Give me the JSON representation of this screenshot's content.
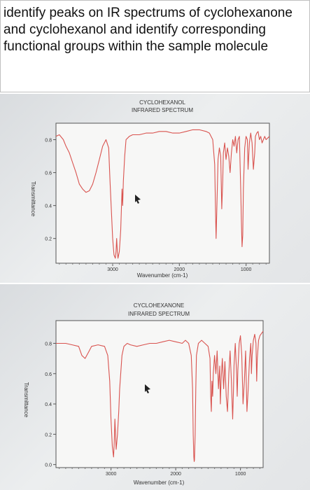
{
  "question": {
    "text": "identify peaks on IR spectrums of cyclohexanone and cyclohexanol and identify corresponding functional groups within the sample molecule"
  },
  "colors": {
    "trace": "#d9534f",
    "frame": "#555555",
    "text": "#333333"
  },
  "chart_data": [
    {
      "type": "line",
      "title": "CYCLOHEXANOL",
      "subtitle": "INFRARED SPECTRUM",
      "xlabel": "Wavenumber (cm-1)",
      "ylabel": "Transmittance",
      "x_ticks": [
        3000,
        2000,
        1000
      ],
      "y_ticks": [
        0.2,
        0.4,
        0.6,
        0.8
      ],
      "xlim": [
        3850,
        650
      ],
      "ylim": [
        0.05,
        0.9
      ],
      "grid": false,
      "series": [
        {
          "x": [
            3850,
            3800,
            3740,
            3700,
            3650,
            3600,
            3550,
            3500,
            3450,
            3400,
            3350,
            3300,
            3250,
            3200,
            3150,
            3100,
            3060,
            3040,
            3000,
            2980,
            2960,
            2950,
            2940,
            2930,
            2920,
            2900,
            2880,
            2860,
            2850,
            2840,
            2820,
            2800,
            2750,
            2700,
            2600,
            2500,
            2400,
            2300,
            2200,
            2100,
            2000,
            1900,
            1800,
            1700,
            1600,
            1550,
            1500,
            1470,
            1455,
            1450,
            1440,
            1420,
            1400,
            1380,
            1365,
            1350,
            1340,
            1320,
            1300,
            1280,
            1260,
            1240,
            1220,
            1200,
            1180,
            1160,
            1140,
            1120,
            1100,
            1080,
            1070,
            1060,
            1050,
            1040,
            1020,
            1000,
            980,
            970,
            950,
            930,
            910,
            890,
            870,
            860,
            840,
            820,
            800,
            780,
            760,
            740,
            720,
            700,
            650
          ],
          "y": [
            0.82,
            0.83,
            0.8,
            0.76,
            0.72,
            0.66,
            0.6,
            0.53,
            0.5,
            0.48,
            0.49,
            0.53,
            0.6,
            0.68,
            0.76,
            0.8,
            0.75,
            0.55,
            0.2,
            0.1,
            0.08,
            0.12,
            0.2,
            0.12,
            0.08,
            0.12,
            0.25,
            0.5,
            0.4,
            0.55,
            0.7,
            0.8,
            0.82,
            0.83,
            0.83,
            0.84,
            0.84,
            0.85,
            0.85,
            0.84,
            0.84,
            0.85,
            0.86,
            0.86,
            0.85,
            0.84,
            0.8,
            0.65,
            0.3,
            0.2,
            0.35,
            0.68,
            0.75,
            0.7,
            0.38,
            0.55,
            0.72,
            0.78,
            0.68,
            0.75,
            0.7,
            0.6,
            0.72,
            0.8,
            0.76,
            0.82,
            0.72,
            0.8,
            0.82,
            0.5,
            0.3,
            0.15,
            0.22,
            0.5,
            0.75,
            0.82,
            0.8,
            0.62,
            0.78,
            0.84,
            0.78,
            0.62,
            0.72,
            0.82,
            0.84,
            0.85,
            0.8,
            0.82,
            0.78,
            0.8,
            0.82,
            0.8,
            0.82
          ]
        }
      ]
    },
    {
      "type": "line",
      "title": "CYCLOHEXANONE",
      "subtitle": "INFRARED SPECTRUM",
      "xlabel": "Wavenumber (cm-1)",
      "ylabel": "Transmittance",
      "x_ticks": [
        3000,
        2000,
        1000
      ],
      "y_ticks": [
        0.0,
        0.2,
        0.4,
        0.6,
        0.8
      ],
      "xlim": [
        3850,
        650
      ],
      "ylim": [
        -0.02,
        0.95
      ],
      "grid": false,
      "series": [
        {
          "x": [
            3850,
            3700,
            3600,
            3500,
            3450,
            3400,
            3350,
            3300,
            3200,
            3100,
            3050,
            3020,
            3000,
            2980,
            2960,
            2950,
            2940,
            2930,
            2920,
            2900,
            2880,
            2866,
            2850,
            2830,
            2800,
            2750,
            2700,
            2600,
            2500,
            2400,
            2300,
            2200,
            2100,
            2000,
            1900,
            1850,
            1800,
            1760,
            1740,
            1730,
            1720,
            1715,
            1710,
            1700,
            1690,
            1680,
            1650,
            1600,
            1550,
            1500,
            1470,
            1460,
            1450,
            1440,
            1430,
            1420,
            1400,
            1380,
            1360,
            1340,
            1320,
            1310,
            1300,
            1280,
            1260,
            1240,
            1220,
            1200,
            1180,
            1160,
            1140,
            1120,
            1110,
            1100,
            1080,
            1060,
            1050,
            1040,
            1020,
            1000,
            980,
            960,
            940,
            920,
            910,
            900,
            880,
            860,
            840,
            830,
            820,
            800,
            780,
            760,
            750,
            740,
            720,
            700,
            650
          ],
          "y": [
            0.8,
            0.8,
            0.79,
            0.78,
            0.72,
            0.7,
            0.74,
            0.78,
            0.79,
            0.78,
            0.72,
            0.55,
            0.3,
            0.12,
            0.05,
            0.15,
            0.3,
            0.2,
            0.1,
            0.2,
            0.35,
            0.5,
            0.6,
            0.72,
            0.78,
            0.8,
            0.79,
            0.78,
            0.79,
            0.8,
            0.8,
            0.81,
            0.82,
            0.81,
            0.8,
            0.82,
            0.8,
            0.72,
            0.5,
            0.2,
            0.05,
            0.02,
            0.03,
            0.2,
            0.5,
            0.72,
            0.8,
            0.82,
            0.8,
            0.78,
            0.7,
            0.45,
            0.35,
            0.55,
            0.45,
            0.6,
            0.72,
            0.6,
            0.75,
            0.5,
            0.65,
            0.4,
            0.55,
            0.7,
            0.5,
            0.68,
            0.45,
            0.35,
            0.6,
            0.75,
            0.55,
            0.3,
            0.45,
            0.65,
            0.8,
            0.6,
            0.45,
            0.62,
            0.8,
            0.85,
            0.72,
            0.4,
            0.55,
            0.75,
            0.55,
            0.35,
            0.5,
            0.7,
            0.8,
            0.6,
            0.72,
            0.82,
            0.86,
            0.8,
            0.55,
            0.7,
            0.82,
            0.85,
            0.88
          ]
        }
      ]
    }
  ]
}
